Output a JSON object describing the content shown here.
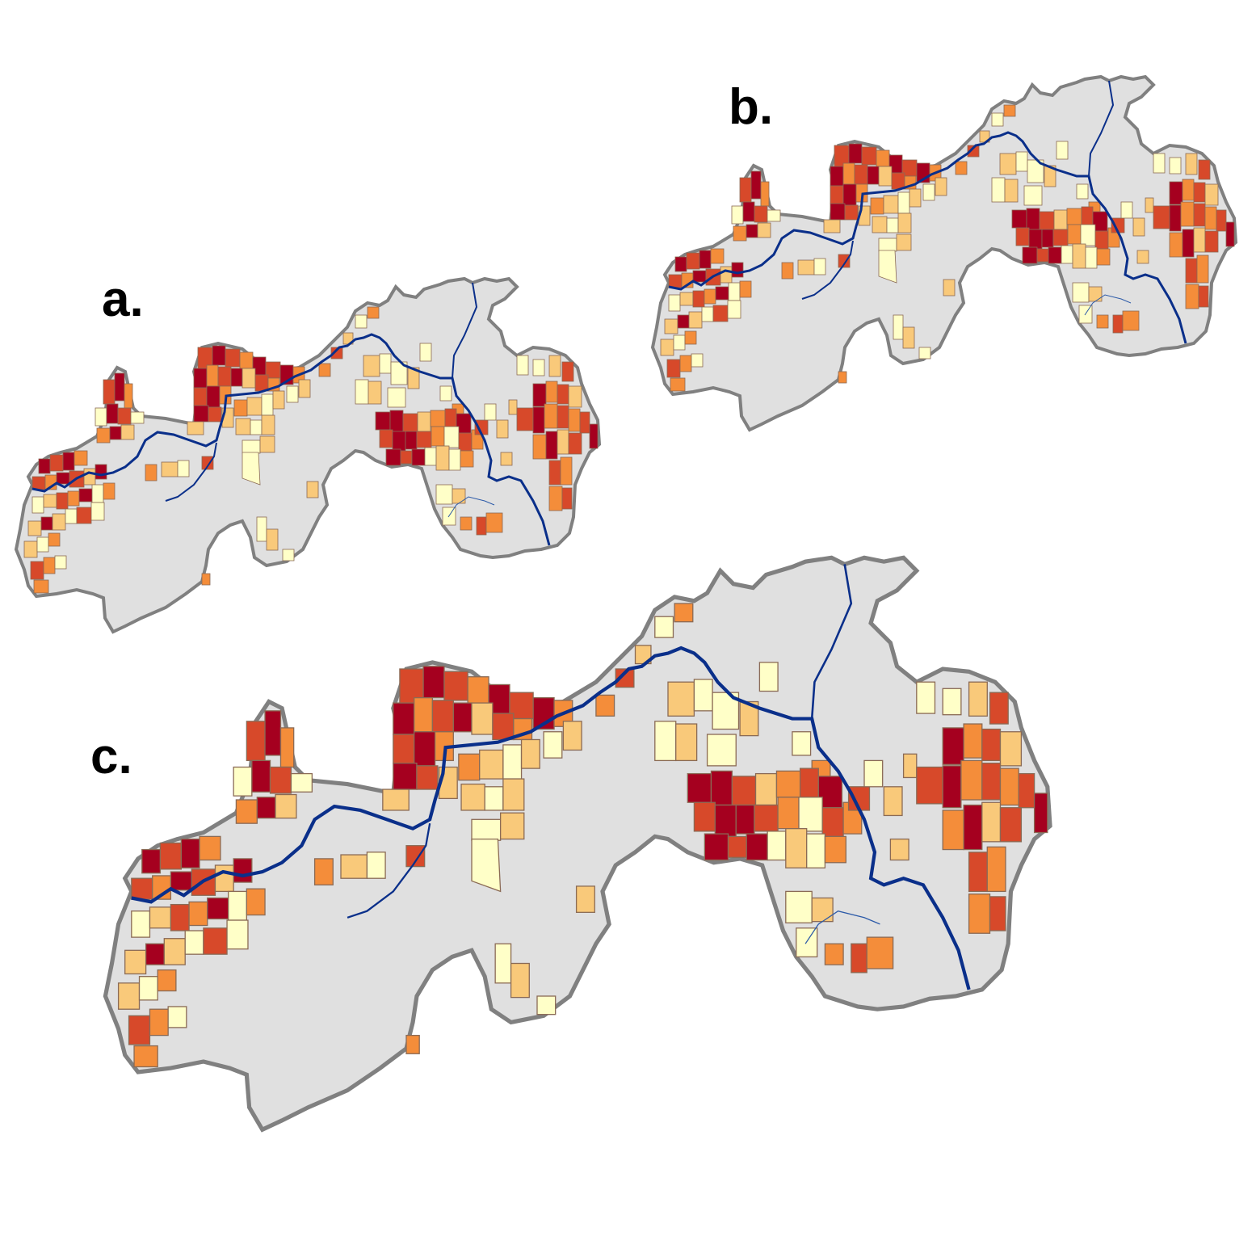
{
  "panels": [
    {
      "label": "a."
    },
    {
      "label": "b."
    },
    {
      "label": "c."
    }
  ],
  "colors": {
    "watershed_fill": "#e0e0e0",
    "watershed_outline": "#808080",
    "river": "#0a2f8a",
    "stream": "#2c5aa8",
    "class_1": "#ffffc8",
    "class_2": "#f9c97a",
    "class_3": "#f48d3a",
    "class_4": "#d7492a",
    "class_5": "#a5001f",
    "parcel_edge": "#8a6a55"
  }
}
